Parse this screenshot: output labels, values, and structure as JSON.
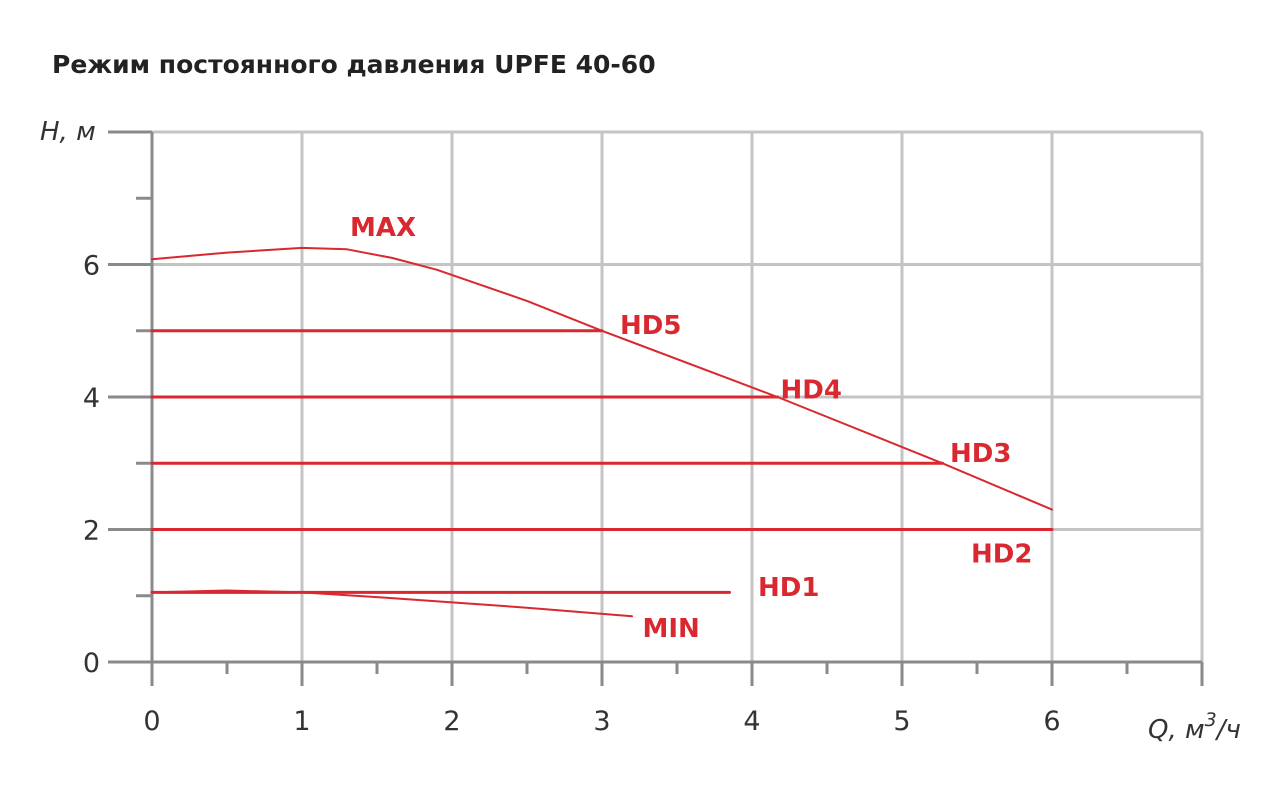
{
  "chart_data": {
    "type": "line",
    "title": "Режим постоянного давления UPFE 40-60",
    "xlabel_main": "Q, м",
    "xlabel_sup": "3",
    "xlabel_tail": "/ч",
    "ylabel": "H, м",
    "xlim": [
      0,
      7
    ],
    "ylim": [
      0,
      8
    ],
    "x_ticks": [
      0,
      1,
      2,
      3,
      4,
      5,
      6
    ],
    "y_ticks": [
      0,
      2,
      4,
      6
    ],
    "grid": true,
    "colors": {
      "curve": "#d9282f",
      "grid": "#c4c4c4",
      "axis": "#8a8a8a"
    },
    "series": [
      {
        "name": "MAX",
        "values": [
          [
            0,
            6.08
          ],
          [
            0.5,
            6.18
          ],
          [
            1.0,
            6.25
          ],
          [
            1.3,
            6.23
          ],
          [
            1.6,
            6.1
          ],
          [
            1.9,
            5.92
          ],
          [
            2.5,
            5.45
          ],
          [
            3.0,
            5.0
          ],
          [
            4.17,
            4.0
          ],
          [
            5.27,
            3.0
          ],
          [
            6.0,
            2.3
          ]
        ]
      },
      {
        "name": "HD5",
        "values": [
          [
            0,
            5.0
          ],
          [
            3.0,
            5.0
          ]
        ]
      },
      {
        "name": "HD4",
        "values": [
          [
            0,
            4.0
          ],
          [
            4.17,
            4.0
          ]
        ]
      },
      {
        "name": "HD3",
        "values": [
          [
            0,
            3.0
          ],
          [
            5.27,
            3.0
          ]
        ]
      },
      {
        "name": "HD2",
        "values": [
          [
            0,
            2.0
          ],
          [
            6.0,
            2.0
          ]
        ]
      },
      {
        "name": "HD1",
        "values": [
          [
            0,
            1.05
          ],
          [
            3.85,
            1.05
          ]
        ]
      },
      {
        "name": "MIN",
        "values": [
          [
            0,
            1.05
          ],
          [
            0.5,
            1.08
          ],
          [
            1.0,
            1.05
          ],
          [
            1.5,
            0.98
          ],
          [
            2.0,
            0.9
          ],
          [
            2.5,
            0.82
          ],
          [
            3.2,
            0.69
          ]
        ]
      }
    ]
  }
}
